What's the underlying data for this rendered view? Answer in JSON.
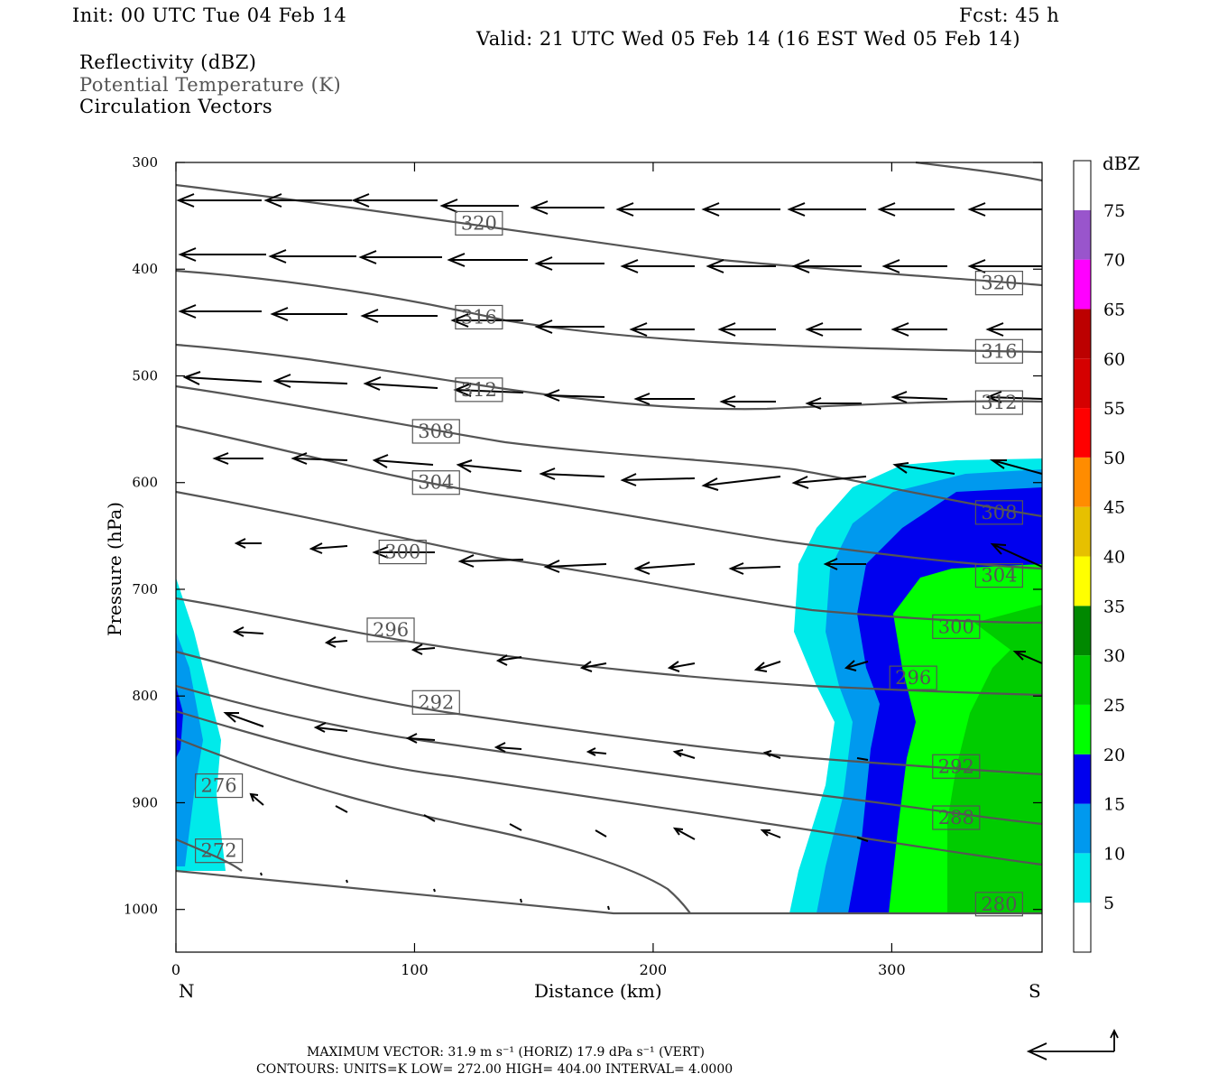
{
  "header": {
    "init": "Init: 00 UTC Tue 04 Feb 14",
    "fcst": "Fcst:   45 h",
    "valid": "Valid: 21 UTC Wed 05 Feb 14 (16 EST Wed 05 Feb 14)",
    "fields": [
      "Reflectivity (dBZ)",
      "Potential Temperature (K)",
      "Circulation Vectors"
    ]
  },
  "footer": {
    "max_vector": "MAXIMUM VECTOR:  31.9 m s⁻¹ (HORIZ)        17.9 dPa s⁻¹ (VERT)",
    "contours": "CONTOURS:  UNITS=K  LOW=  272.00      HIGH=  404.00      INTERVAL=    4.0000"
  },
  "colorbar": {
    "title": "dBZ",
    "ticks": [
      "5",
      "10",
      "15",
      "20",
      "25",
      "30",
      "35",
      "40",
      "45",
      "50",
      "55",
      "60",
      "65",
      "70",
      "75"
    ],
    "colors": [
      "#ffffff",
      "#00eaea",
      "#0099ee",
      "#0000ee",
      "#00ff00",
      "#00cc00",
      "#008800",
      "#ffff00",
      "#e6c000",
      "#ff8c00",
      "#ff0000",
      "#d50000",
      "#bc0000",
      "#ff00ff",
      "#9955cc",
      "#ffffff"
    ]
  },
  "chart_data": {
    "type": "cross-section",
    "xlabel": "Distance (km)",
    "ylabel": "Pressure (hPa)",
    "xlim": [
      0,
      363
    ],
    "ylim": [
      300,
      1040
    ],
    "x_ticks": [
      0,
      100,
      200,
      300
    ],
    "y_ticks": [
      300,
      400,
      500,
      600,
      700,
      800,
      900,
      1000
    ],
    "x_end_labels": {
      "left": "N",
      "right": "S"
    },
    "contour_labels": [
      {
        "text": "320",
        "x": 127,
        "p": 357
      },
      {
        "text": "320",
        "x": 345,
        "p": 413
      },
      {
        "text": "316",
        "x": 127,
        "p": 445
      },
      {
        "text": "316",
        "x": 345,
        "p": 477
      },
      {
        "text": "312",
        "x": 127,
        "p": 513
      },
      {
        "text": "312",
        "x": 345,
        "p": 525
      },
      {
        "text": "308",
        "x": 109,
        "p": 552
      },
      {
        "text": "308",
        "x": 345,
        "p": 628
      },
      {
        "text": "304",
        "x": 109,
        "p": 600
      },
      {
        "text": "304",
        "x": 345,
        "p": 687
      },
      {
        "text": "300",
        "x": 95,
        "p": 665
      },
      {
        "text": "300",
        "x": 327,
        "p": 735
      },
      {
        "text": "296",
        "x": 90,
        "p": 738
      },
      {
        "text": "296",
        "x": 309,
        "p": 783
      },
      {
        "text": "292",
        "x": 109,
        "p": 806
      },
      {
        "text": "292",
        "x": 327,
        "p": 866
      },
      {
        "text": "288",
        "x": 327,
        "p": 914
      },
      {
        "text": "280",
        "x": 345,
        "p": 995
      },
      {
        "text": "276",
        "x": 18,
        "p": 884
      },
      {
        "text": "272",
        "x": 18,
        "p": 945
      }
    ]
  }
}
